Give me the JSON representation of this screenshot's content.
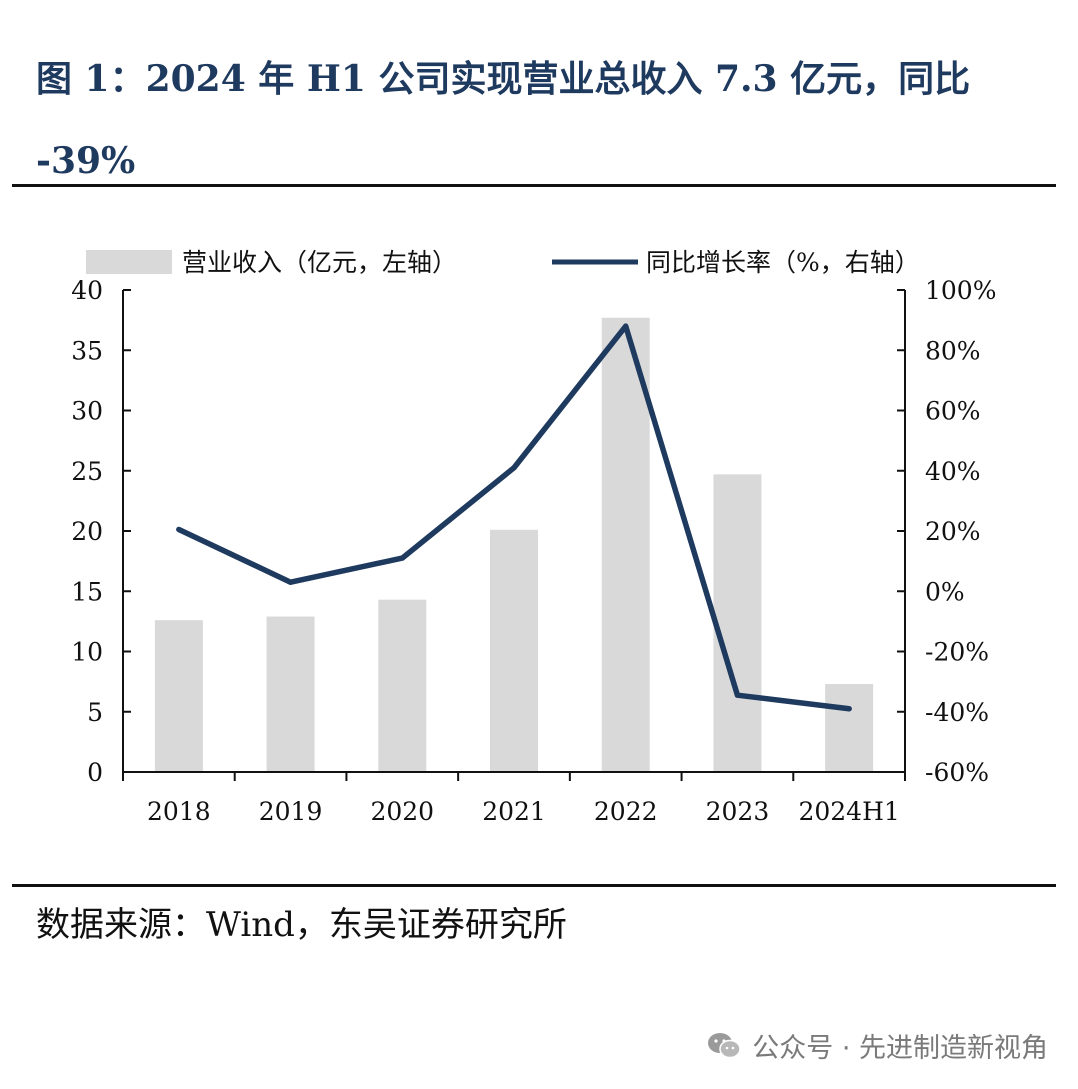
{
  "figure": {
    "title": "图 1：2024 年 H1 公司实现营业总收入 7.3 亿元，同比 -39%",
    "source": "数据来源：Wind，东吴证券研究所",
    "watermark": "公众号 · 先进制造新视角",
    "watermark_icon": "wechat-icon"
  },
  "chart_data": {
    "type": "bar",
    "categories": [
      "2018",
      "2019",
      "2020",
      "2021",
      "2022",
      "2023",
      "2024H1"
    ],
    "series": [
      {
        "name": "营业收入（亿元，左轴）",
        "type": "bar",
        "axis": "left",
        "color": "#d9d9d9",
        "values": [
          12.6,
          12.9,
          14.3,
          20.1,
          37.7,
          24.7,
          7.3
        ]
      },
      {
        "name": "同比增长率（%，右轴）",
        "type": "line",
        "axis": "right",
        "color": "#1f3a5f",
        "values": [
          20.5,
          3.0,
          11.0,
          41.0,
          88.0,
          -34.5,
          -39.0
        ]
      }
    ],
    "y_left": {
      "lim": [
        0,
        40
      ],
      "ticks": [
        0,
        5,
        10,
        15,
        20,
        25,
        30,
        35,
        40
      ],
      "tick_labels": [
        "0",
        "5",
        "10",
        "15",
        "20",
        "25",
        "30",
        "35",
        "40"
      ]
    },
    "y_right": {
      "lim": [
        -60,
        100
      ],
      "ticks": [
        -60,
        -40,
        -20,
        0,
        20,
        40,
        60,
        80,
        100
      ],
      "tick_labels": [
        "-60%",
        "-40%",
        "-20%",
        "0%",
        "20%",
        "40%",
        "60%",
        "80%",
        "100%"
      ]
    },
    "grid": false,
    "legend_position": "top"
  }
}
